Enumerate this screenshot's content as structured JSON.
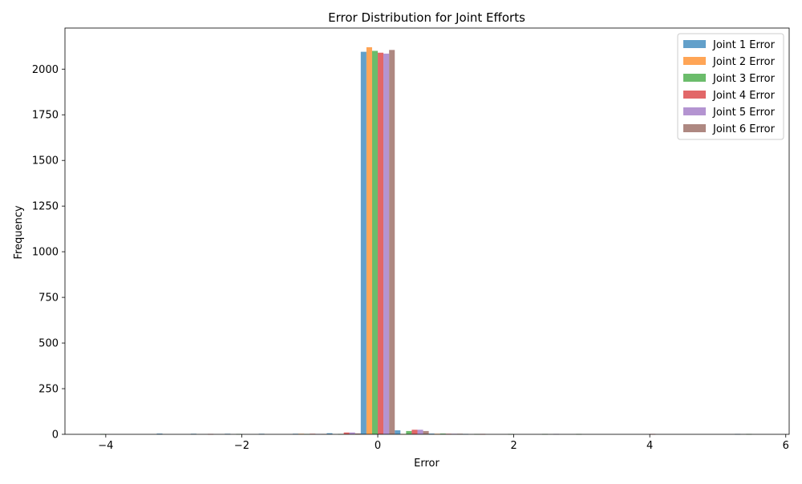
{
  "chart_data": {
    "type": "bar",
    "title": "Error Distribution for Joint Efforts",
    "xlabel": "Error",
    "ylabel": "Frequency",
    "xlim": [
      -4.6,
      6.05
    ],
    "ylim": [
      0,
      2225
    ],
    "x_ticks": [
      -4,
      -2,
      0,
      2,
      4,
      6
    ],
    "x_tick_labels": [
      "−4",
      "−2",
      "0",
      "2",
      "4",
      "6"
    ],
    "y_ticks": [
      0,
      250,
      500,
      750,
      1000,
      1250,
      1500,
      1750,
      2000
    ],
    "y_tick_labels": [
      "0",
      "250",
      "500",
      "750",
      "1000",
      "1250",
      "1500",
      "1750",
      "2000"
    ],
    "legend_position": "top-right",
    "grid": false,
    "bin_edges": [
      -4.25,
      -3.75,
      -3.25,
      -2.75,
      -2.25,
      -1.75,
      -1.25,
      -0.75,
      -0.25,
      0.25,
      0.75,
      1.25,
      1.75,
      2.25,
      2.75,
      3.25,
      3.75,
      4.25,
      4.75,
      5.25,
      5.75
    ],
    "series": [
      {
        "name": "Joint 1 Error",
        "color": "#1f77b4",
        "values": [
          0,
          0,
          4,
          3,
          3,
          3,
          3,
          6,
          2095,
          22,
          4,
          2,
          0,
          0,
          0,
          0,
          0,
          0,
          0,
          2
        ]
      },
      {
        "name": "Joint 2 Error",
        "color": "#ff7f0e",
        "values": [
          0,
          0,
          0,
          0,
          0,
          0,
          3,
          0,
          2120,
          2,
          3,
          0,
          0,
          0,
          0,
          0,
          0,
          0,
          0,
          0
        ]
      },
      {
        "name": "Joint 3 Error",
        "color": "#2ca02c",
        "values": [
          2,
          0,
          0,
          0,
          2,
          0,
          2,
          2,
          2100,
          18,
          4,
          2,
          2,
          2,
          2,
          0,
          0,
          0,
          0,
          2
        ]
      },
      {
        "name": "Joint 4 Error",
        "color": "#d62728",
        "values": [
          0,
          0,
          0,
          2,
          0,
          0,
          3,
          10,
          2090,
          25,
          3,
          2,
          0,
          0,
          0,
          0,
          2,
          0,
          0,
          0
        ]
      },
      {
        "name": "Joint 5 Error",
        "color": "#9467bd",
        "values": [
          0,
          0,
          0,
          0,
          0,
          0,
          2,
          10,
          2085,
          25,
          3,
          0,
          0,
          2,
          0,
          0,
          0,
          0,
          0,
          0
        ]
      },
      {
        "name": "Joint 6 Error",
        "color": "#8c564b",
        "values": [
          0,
          0,
          0,
          0,
          0,
          0,
          2,
          5,
          2105,
          18,
          3,
          0,
          0,
          0,
          0,
          0,
          0,
          0,
          0,
          0
        ]
      }
    ]
  }
}
